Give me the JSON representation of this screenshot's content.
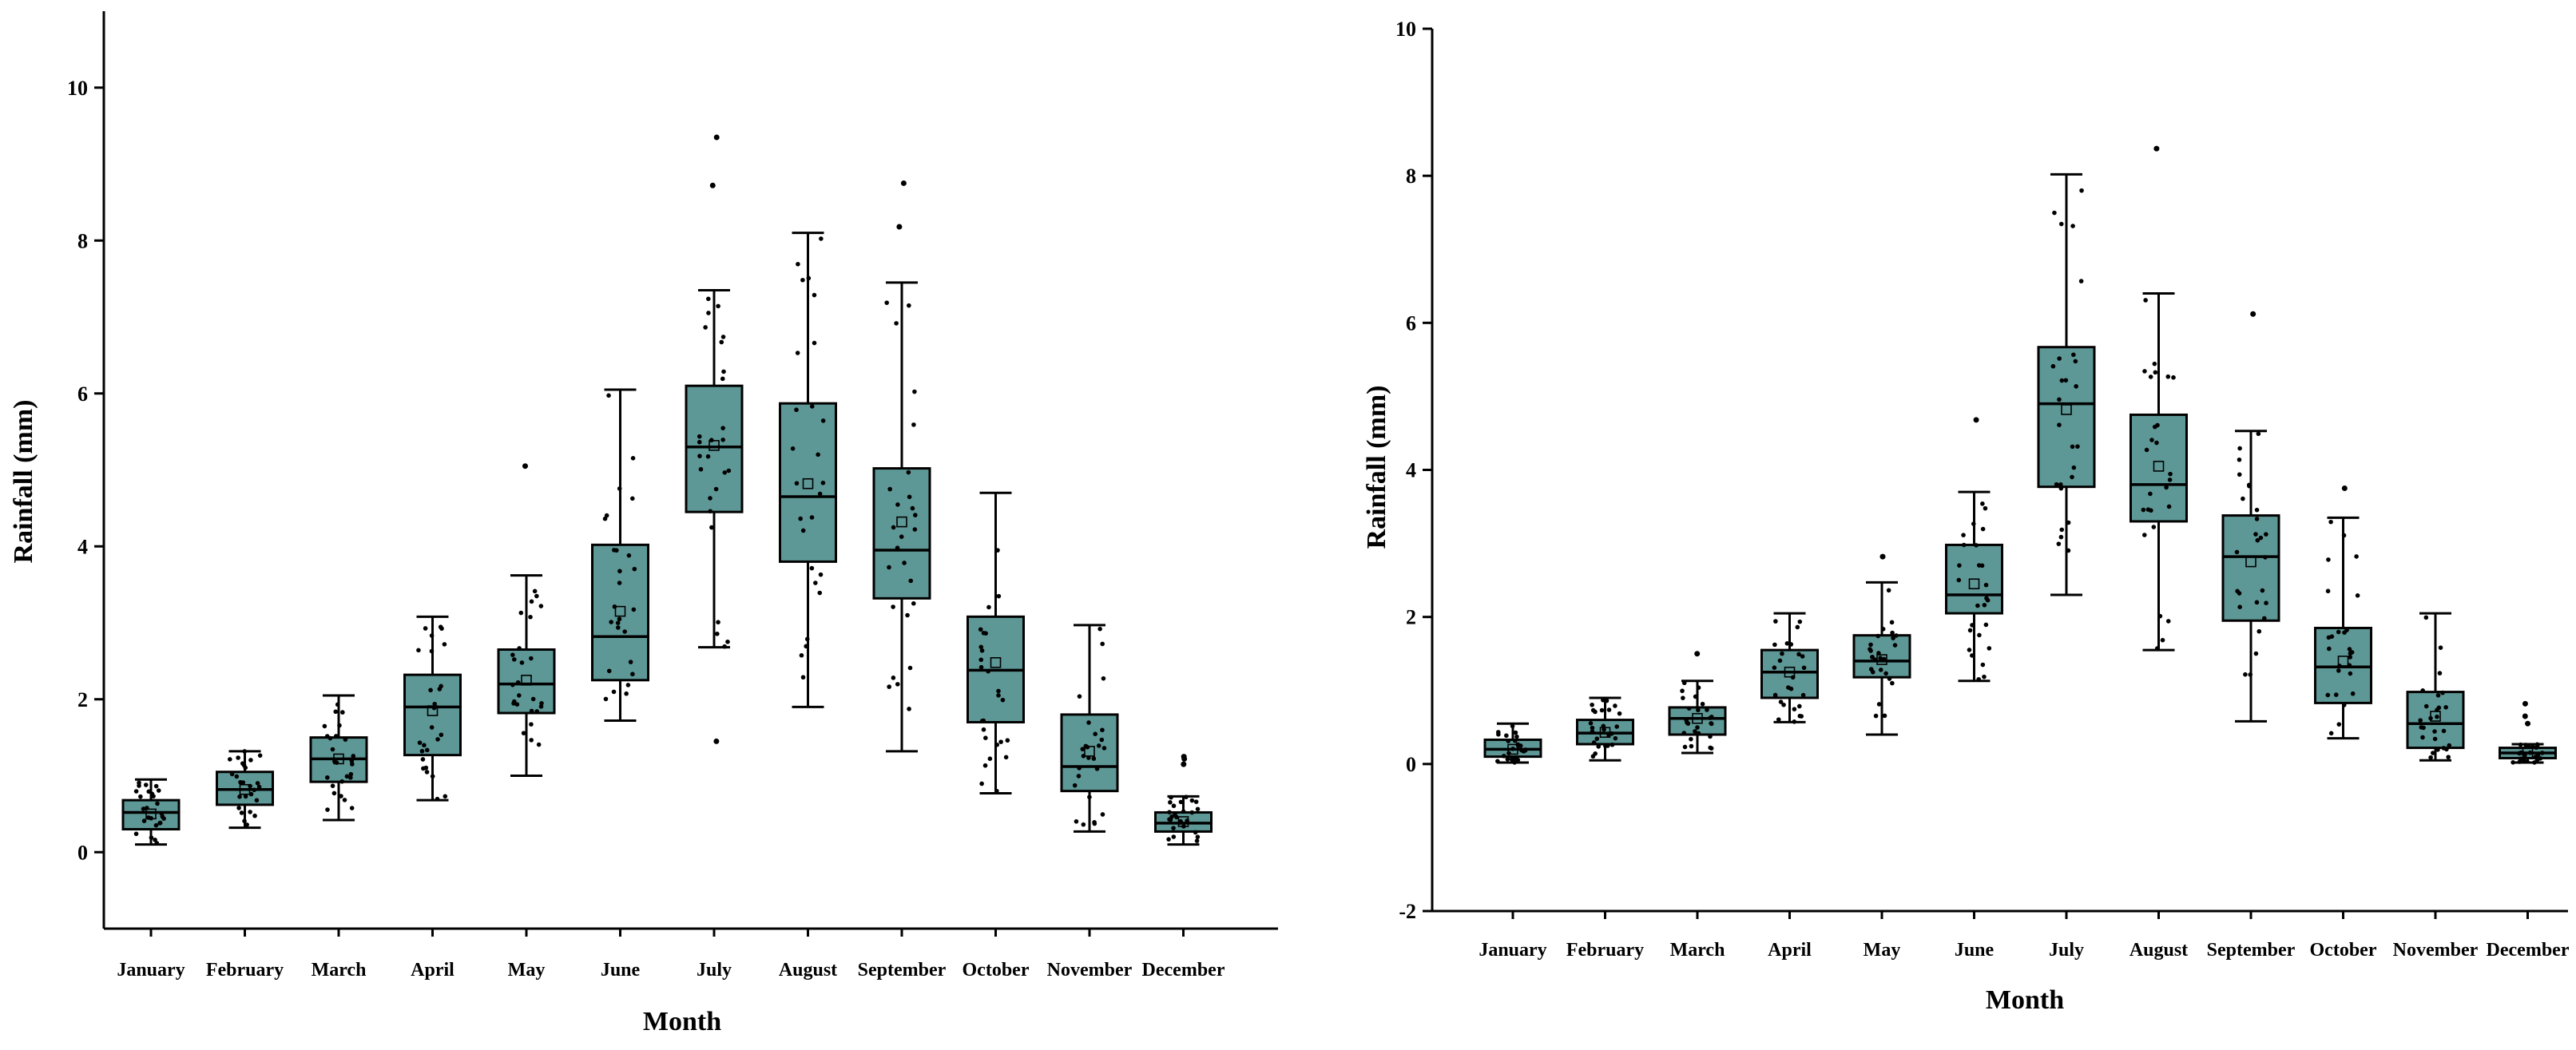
{
  "colors": {
    "box_fill": "#5e9896",
    "stroke": "#000000",
    "background": "#ffffff"
  },
  "chart_data": [
    {
      "type": "box",
      "xlabel": "Month",
      "ylabel": "Rainfall (mm)",
      "ylim": [
        -1,
        11
      ],
      "yticks": [
        0,
        2,
        4,
        6,
        8,
        10
      ],
      "categories": [
        "January",
        "February",
        "March",
        "April",
        "May",
        "June",
        "July",
        "August",
        "September",
        "October",
        "November",
        "December"
      ],
      "boxes": [
        {
          "whisker_low": 0.1,
          "q1": 0.3,
          "median": 0.52,
          "q3": 0.68,
          "whisker_high": 0.95,
          "mean": 0.5,
          "outliers": []
        },
        {
          "whisker_low": 0.32,
          "q1": 0.62,
          "median": 0.82,
          "q3": 1.05,
          "whisker_high": 1.32,
          "mean": 0.82,
          "outliers": []
        },
        {
          "whisker_low": 0.42,
          "q1": 0.92,
          "median": 1.22,
          "q3": 1.5,
          "whisker_high": 2.05,
          "mean": 1.22,
          "outliers": []
        },
        {
          "whisker_low": 0.68,
          "q1": 1.27,
          "median": 1.9,
          "q3": 2.32,
          "whisker_high": 3.08,
          "mean": 1.85,
          "outliers": []
        },
        {
          "whisker_low": 1.0,
          "q1": 1.82,
          "median": 2.2,
          "q3": 2.65,
          "whisker_high": 3.62,
          "mean": 2.25,
          "outliers": [
            5.05
          ]
        },
        {
          "whisker_low": 1.72,
          "q1": 2.25,
          "median": 2.82,
          "q3": 4.02,
          "whisker_high": 6.05,
          "mean": 3.15,
          "outliers": []
        },
        {
          "whisker_low": 2.68,
          "q1": 4.45,
          "median": 5.3,
          "q3": 6.1,
          "whisker_high": 7.35,
          "mean": 5.32,
          "outliers": [
            1.45,
            8.72,
            9.35
          ]
        },
        {
          "whisker_low": 1.9,
          "q1": 3.8,
          "median": 4.65,
          "q3": 5.87,
          "whisker_high": 8.1,
          "mean": 4.82,
          "outliers": []
        },
        {
          "whisker_low": 1.32,
          "q1": 3.32,
          "median": 3.95,
          "q3": 5.02,
          "whisker_high": 7.45,
          "mean": 4.32,
          "outliers": [
            8.18,
            8.75
          ]
        },
        {
          "whisker_low": 0.77,
          "q1": 1.7,
          "median": 2.38,
          "q3": 3.08,
          "whisker_high": 4.7,
          "mean": 2.48,
          "outliers": []
        },
        {
          "whisker_low": 0.27,
          "q1": 0.8,
          "median": 1.12,
          "q3": 1.8,
          "whisker_high": 2.97,
          "mean": 1.32,
          "outliers": []
        },
        {
          "whisker_low": 0.1,
          "q1": 0.27,
          "median": 0.38,
          "q3": 0.52,
          "whisker_high": 0.73,
          "mean": 0.4,
          "outliers": [
            1.15,
            1.22,
            1.25
          ]
        }
      ]
    },
    {
      "type": "box",
      "xlabel": "Month",
      "ylabel": "Rainfall (mm)",
      "ylim": [
        -2,
        10
      ],
      "yticks": [
        -2,
        0,
        2,
        4,
        6,
        8,
        10
      ],
      "categories": [
        "January",
        "February",
        "March",
        "April",
        "May",
        "June",
        "July",
        "August",
        "September",
        "October",
        "November",
        "December"
      ],
      "boxes": [
        {
          "whisker_low": 0.02,
          "q1": 0.1,
          "median": 0.2,
          "q3": 0.33,
          "whisker_high": 0.55,
          "mean": 0.2,
          "outliers": []
        },
        {
          "whisker_low": 0.05,
          "q1": 0.27,
          "median": 0.42,
          "q3": 0.6,
          "whisker_high": 0.9,
          "mean": 0.43,
          "outliers": []
        },
        {
          "whisker_low": 0.15,
          "q1": 0.4,
          "median": 0.62,
          "q3": 0.77,
          "whisker_high": 1.13,
          "mean": 0.62,
          "outliers": [
            1.5
          ]
        },
        {
          "whisker_low": 0.57,
          "q1": 0.9,
          "median": 1.25,
          "q3": 1.55,
          "whisker_high": 2.05,
          "mean": 1.25,
          "outliers": []
        },
        {
          "whisker_low": 0.4,
          "q1": 1.18,
          "median": 1.4,
          "q3": 1.75,
          "whisker_high": 2.47,
          "mean": 1.42,
          "outliers": [
            2.82
          ]
        },
        {
          "whisker_low": 1.13,
          "q1": 2.05,
          "median": 2.3,
          "q3": 2.98,
          "whisker_high": 3.7,
          "mean": 2.45,
          "outliers": [
            4.68
          ]
        },
        {
          "whisker_low": 2.3,
          "q1": 3.77,
          "median": 4.9,
          "q3": 5.67,
          "whisker_high": 8.02,
          "mean": 4.82,
          "outliers": []
        },
        {
          "whisker_low": 1.55,
          "q1": 3.3,
          "median": 3.8,
          "q3": 4.75,
          "whisker_high": 6.4,
          "mean": 4.05,
          "outliers": [
            8.37
          ]
        },
        {
          "whisker_low": 0.58,
          "q1": 1.95,
          "median": 2.82,
          "q3": 3.38,
          "whisker_high": 4.53,
          "mean": 2.75,
          "outliers": [
            6.12
          ]
        },
        {
          "whisker_low": 0.35,
          "q1": 0.83,
          "median": 1.32,
          "q3": 1.85,
          "whisker_high": 3.35,
          "mean": 1.4,
          "outliers": [
            3.75
          ]
        },
        {
          "whisker_low": 0.05,
          "q1": 0.22,
          "median": 0.55,
          "q3": 0.98,
          "whisker_high": 2.05,
          "mean": 0.65,
          "outliers": []
        },
        {
          "whisker_low": 0.02,
          "q1": 0.08,
          "median": 0.15,
          "q3": 0.22,
          "whisker_high": 0.27,
          "mean": 0.15,
          "outliers": [
            0.55,
            0.65,
            0.82
          ]
        }
      ]
    }
  ]
}
